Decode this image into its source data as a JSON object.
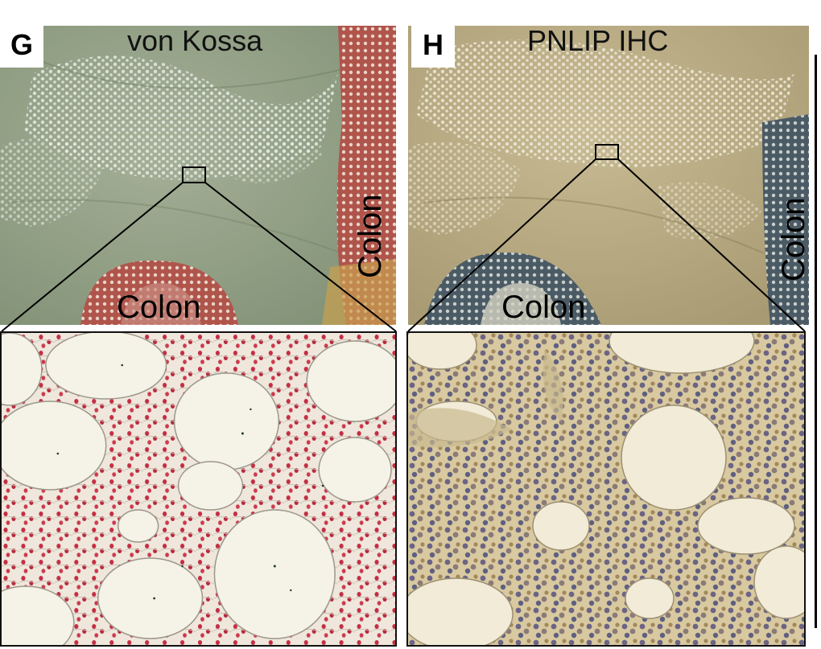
{
  "panels": {
    "G": {
      "letter": "G",
      "stain": "von Kossa",
      "colon_bottom": "Colon",
      "colon_side": "Colon"
    },
    "H": {
      "letter": "H",
      "stain": "PNLIP IHC",
      "colon_bottom": "Colon",
      "colon_side": "Colon"
    }
  },
  "colors": {
    "g_background": "#8e9f83",
    "g_colon": "#b2564c",
    "g_cells": "#c42e44",
    "h_background": "#b7a880",
    "h_colon": "#4a5a66",
    "h_cells": "#7a6a8a",
    "fat": "#f4f2e6"
  }
}
